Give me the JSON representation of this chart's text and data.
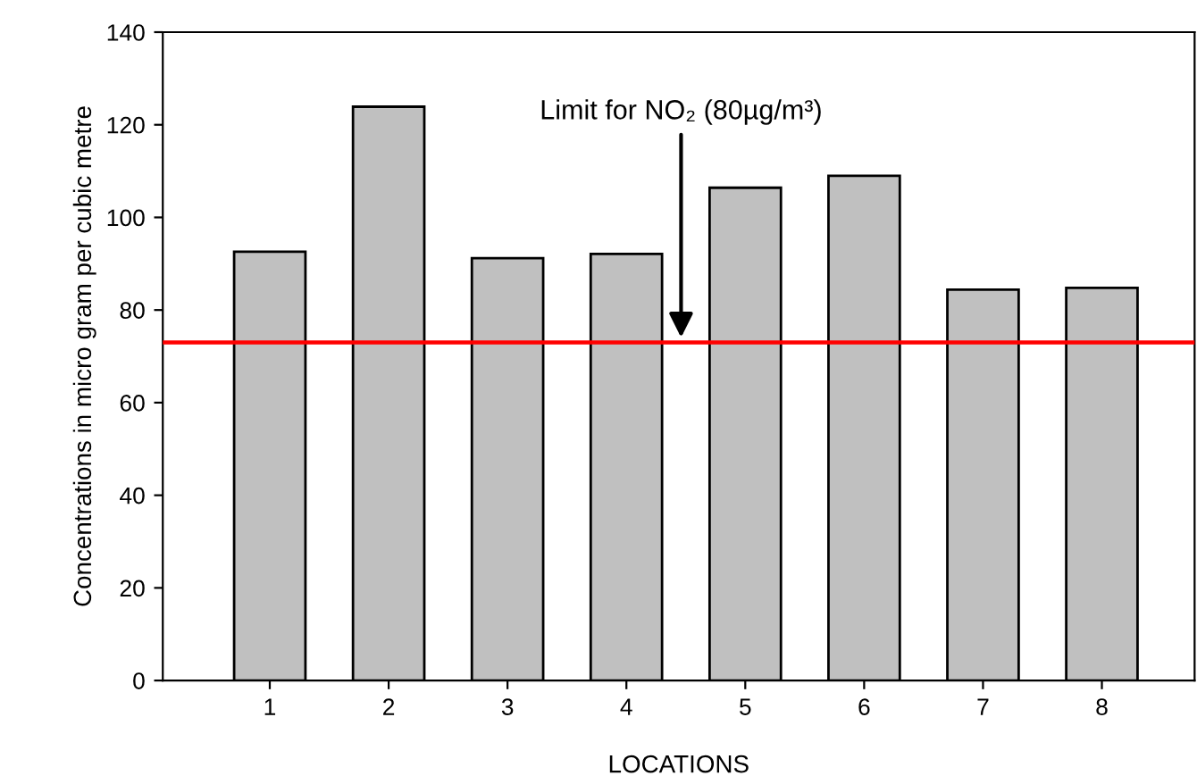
{
  "chart_data": {
    "type": "bar",
    "categories": [
      "1",
      "2",
      "3",
      "4",
      "5",
      "6",
      "7",
      "8"
    ],
    "values": [
      92.6,
      123.9,
      91.2,
      92.1,
      106.4,
      109.0,
      84.4,
      84.8
    ],
    "color": "#c0c0c0",
    "xlabel": "LOCATIONS",
    "ylabel": "Concentrations in micro gram per cubic metre",
    "ylim": [
      0,
      140
    ],
    "yticks": [
      0,
      20,
      40,
      60,
      80,
      100,
      120,
      140
    ],
    "ref_lines": [
      {
        "axis": "y",
        "value": 73,
        "label": "Limit for NO₂ (80µg/m³)",
        "color": "#ff0000",
        "line_style": "solid"
      }
    ],
    "grid": false,
    "legend": false
  }
}
